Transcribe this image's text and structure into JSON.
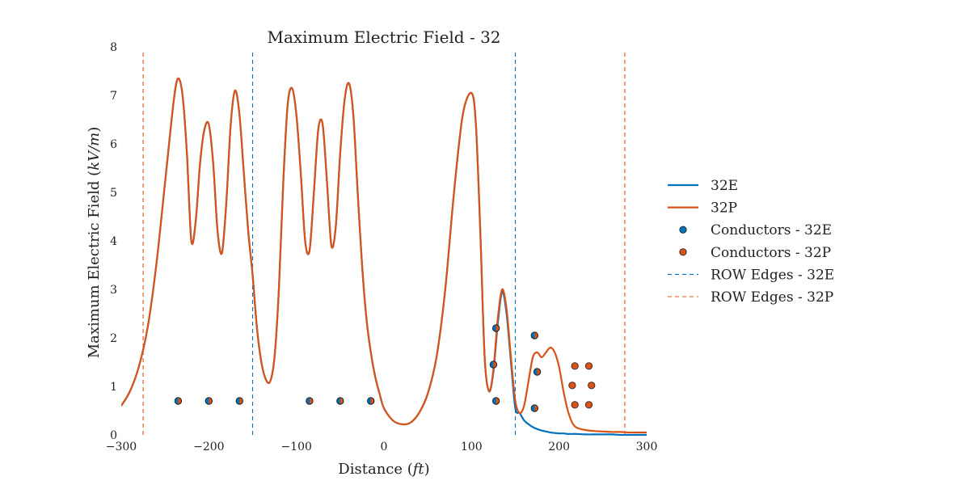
{
  "chart_data": {
    "type": "line",
    "title": "Maximum Electric Field - 32",
    "xlabel": "Distance",
    "xlabel_unit": "ft",
    "ylabel": "Maximum Electric Field",
    "ylabel_unit": "kV/m",
    "xlim": [
      -300,
      300
    ],
    "ylim": [
      0,
      8
    ],
    "xticks": [
      -300,
      -200,
      -100,
      0,
      100,
      200,
      300
    ],
    "xtick_labels": [
      "−300",
      "−200",
      "−100",
      "0",
      "100",
      "200",
      "300"
    ],
    "yticks": [
      0,
      1,
      2,
      3,
      4,
      5,
      6,
      7,
      8
    ],
    "ytick_labels": [
      "0",
      "1",
      "2",
      "3",
      "4",
      "5",
      "6",
      "7",
      "8"
    ],
    "grid": false,
    "legend_position": "right",
    "series": [
      {
        "name": "32E",
        "color": "#0072bd",
        "x": [
          -300,
          -290,
          -280,
          -270,
          -260,
          -250,
          -240,
          -235,
          -230,
          -225,
          -220,
          -215,
          -210,
          -205,
          -200,
          -195,
          -190,
          -185,
          -180,
          -175,
          -170,
          -165,
          -160,
          -155,
          -150,
          -145,
          -140,
          -135,
          -130,
          -125,
          -120,
          -115,
          -110,
          -105,
          -100,
          -95,
          -90,
          -85,
          -80,
          -75,
          -70,
          -65,
          -60,
          -55,
          -50,
          -45,
          -40,
          -35,
          -30,
          -25,
          -20,
          -15,
          -10,
          -5,
          0,
          10,
          20,
          30,
          40,
          50,
          60,
          70,
          80,
          90,
          100,
          105,
          110,
          115,
          120,
          125,
          130,
          135,
          140,
          145,
          150,
          155,
          160,
          165,
          170,
          175,
          180,
          185,
          190,
          195,
          200,
          205,
          210,
          215,
          220,
          230,
          240,
          250,
          260,
          270,
          280,
          290,
          300
        ],
        "y": [
          0.6,
          0.9,
          1.4,
          2.2,
          3.5,
          5.2,
          6.9,
          7.35,
          7.0,
          5.8,
          4.0,
          4.4,
          5.6,
          6.3,
          6.4,
          5.6,
          4.2,
          3.75,
          4.8,
          6.4,
          7.1,
          6.6,
          5.4,
          4.2,
          3.3,
          2.2,
          1.5,
          1.15,
          1.1,
          1.6,
          3.0,
          5.2,
          6.8,
          7.15,
          6.6,
          5.4,
          4.0,
          3.8,
          5.0,
          6.3,
          6.4,
          5.2,
          3.9,
          4.3,
          5.8,
          6.9,
          7.25,
          6.6,
          5.0,
          3.5,
          2.4,
          1.7,
          1.2,
          0.85,
          0.55,
          0.3,
          0.22,
          0.25,
          0.45,
          0.85,
          1.6,
          3.0,
          5.0,
          6.6,
          7.05,
          6.4,
          4.2,
          1.6,
          0.9,
          1.3,
          2.3,
          2.95,
          2.5,
          1.5,
          0.55,
          0.45,
          0.3,
          0.22,
          0.16,
          0.12,
          0.09,
          0.07,
          0.05,
          0.04,
          0.03,
          0.03,
          0.02,
          0.02,
          0.02,
          0.01,
          0.01,
          0.01,
          0.01,
          0.0,
          0.0,
          0.0,
          0.0
        ]
      },
      {
        "name": "32P",
        "color": "#d95319",
        "x": [
          -300,
          -290,
          -280,
          -270,
          -260,
          -250,
          -240,
          -235,
          -230,
          -225,
          -220,
          -215,
          -210,
          -205,
          -200,
          -195,
          -190,
          -185,
          -180,
          -175,
          -170,
          -165,
          -160,
          -155,
          -150,
          -145,
          -140,
          -135,
          -130,
          -125,
          -120,
          -115,
          -110,
          -105,
          -100,
          -95,
          -90,
          -85,
          -80,
          -75,
          -70,
          -65,
          -60,
          -55,
          -50,
          -45,
          -40,
          -35,
          -30,
          -25,
          -20,
          -15,
          -10,
          -5,
          0,
          10,
          20,
          30,
          40,
          50,
          60,
          70,
          80,
          90,
          100,
          105,
          110,
          115,
          120,
          125,
          130,
          135,
          140,
          145,
          150,
          155,
          160,
          165,
          170,
          175,
          180,
          185,
          190,
          195,
          200,
          205,
          210,
          215,
          220,
          230,
          240,
          250,
          260,
          270,
          280,
          290,
          300
        ],
        "y": [
          0.6,
          0.9,
          1.4,
          2.2,
          3.5,
          5.2,
          6.9,
          7.35,
          7.0,
          5.8,
          4.0,
          4.4,
          5.6,
          6.3,
          6.4,
          5.6,
          4.2,
          3.75,
          4.8,
          6.4,
          7.1,
          6.6,
          5.4,
          4.2,
          3.3,
          2.2,
          1.5,
          1.15,
          1.1,
          1.6,
          3.0,
          5.2,
          6.8,
          7.15,
          6.6,
          5.4,
          4.0,
          3.8,
          5.0,
          6.3,
          6.4,
          5.2,
          3.9,
          4.3,
          5.8,
          6.9,
          7.25,
          6.6,
          5.0,
          3.5,
          2.4,
          1.7,
          1.2,
          0.85,
          0.55,
          0.3,
          0.22,
          0.25,
          0.45,
          0.85,
          1.6,
          3.0,
          5.0,
          6.6,
          7.05,
          6.4,
          4.2,
          1.6,
          0.9,
          1.35,
          2.4,
          3.0,
          2.6,
          1.6,
          0.7,
          0.45,
          0.6,
          1.1,
          1.6,
          1.7,
          1.6,
          1.7,
          1.8,
          1.7,
          1.4,
          0.9,
          0.5,
          0.25,
          0.15,
          0.1,
          0.08,
          0.07,
          0.06,
          0.06,
          0.05,
          0.05,
          0.05
        ]
      }
    ],
    "conductors": [
      {
        "name": "Conductors - 32E",
        "color": "#0072bd",
        "x": [
          -235,
          -200,
          -165,
          -85,
          -50,
          -15,
          128,
          125,
          128,
          172,
          175,
          172
        ],
        "y": [
          0.7,
          0.7,
          0.7,
          0.7,
          0.7,
          0.7,
          0.7,
          1.45,
          2.2,
          0.55,
          1.3,
          2.05
        ]
      },
      {
        "name": "Conductors - 32P",
        "color": "#d95319",
        "x": [
          -235,
          -200,
          -165,
          -85,
          -50,
          -15,
          128,
          125,
          128,
          172,
          175,
          172,
          218,
          234,
          215,
          237,
          218,
          234
        ],
        "y": [
          0.7,
          0.7,
          0.7,
          0.7,
          0.7,
          0.7,
          0.7,
          1.45,
          2.2,
          0.55,
          1.3,
          2.05,
          0.62,
          0.62,
          1.02,
          1.02,
          1.42,
          1.42
        ]
      }
    ],
    "row_edges": [
      {
        "name": "ROW Edges - 32E",
        "color": "#0072bd",
        "x": [
          -150,
          150
        ]
      },
      {
        "name": "ROW Edges - 32P",
        "color": "#d95319",
        "x": [
          -275,
          275
        ]
      }
    ],
    "legend": [
      {
        "label": "32E",
        "kind": "line",
        "color": "#0072bd"
      },
      {
        "label": "32P",
        "kind": "line",
        "color": "#d95319"
      },
      {
        "label": "Conductors - 32E",
        "kind": "marker",
        "color": "#0072bd"
      },
      {
        "label": "Conductors - 32P",
        "kind": "marker",
        "color": "#d95319"
      },
      {
        "label": "ROW Edges - 32E",
        "kind": "dashed",
        "color": "#0072bd"
      },
      {
        "label": "ROW Edges - 32P",
        "kind": "dashed",
        "color": "#d95319"
      }
    ]
  }
}
